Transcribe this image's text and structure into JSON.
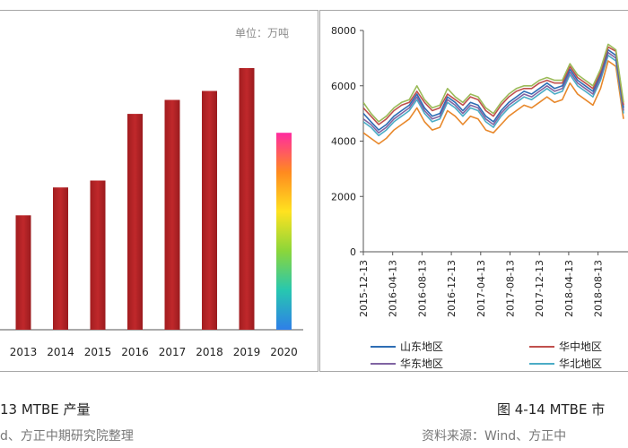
{
  "left_chart": {
    "unit_label": "单位：万吨",
    "caption": "13 MTBE 产量",
    "source": "d、方正中期研究院整理"
  },
  "right_chart": {
    "caption": "图 4-14 MTBE 市",
    "source": "资料来源：Wind、方正中"
  },
  "chart_data": [
    {
      "type": "bar",
      "categories": [
        "2013",
        "2014",
        "2015",
        "2016",
        "2017",
        "2018",
        "2019",
        "2020"
      ],
      "values": [
        1150,
        1430,
        1500,
        2170,
        2310,
        2400,
        2630,
        1980
      ],
      "ylim": [
        0,
        2630
      ],
      "colors": {
        "bar": "#c0282b",
        "highlight_gradient": [
          "#2e7fe8",
          "#27c7b0",
          "#8bd63a",
          "#ffe21f",
          "#ff8a1f",
          "#ff2ba0"
        ]
      }
    },
    {
      "type": "line",
      "x_ticks": [
        "2015-12-13",
        "2016-04-13",
        "2016-08-13",
        "2016-12-13",
        "2017-04-13",
        "2017-08-13",
        "2017-12-13",
        "2018-04-13",
        "2018-08-13"
      ],
      "y_ticks": [
        0,
        2000,
        4000,
        6000,
        8000
      ],
      "ylim": [
        0,
        8000
      ],
      "legend_position": "bottom",
      "series": [
        {
          "name": "山东地区",
          "color": "#2e6db4",
          "values": [
            5000,
            4700,
            4400,
            4600,
            4900,
            5100,
            5300,
            5700,
            5200,
            4900,
            5000,
            5600,
            5400,
            5100,
            5400,
            5300,
            4900,
            4700,
            5100,
            5400,
            5600,
            5800,
            5700,
            5900,
            6100,
            5900,
            6000,
            6600,
            6200,
            6000,
            5800,
            6400,
            7300,
            7100,
            5200
          ]
        },
        {
          "name": "华中地区",
          "color": "#c0504d",
          "values": [
            5200,
            4900,
            4600,
            4800,
            5100,
            5300,
            5400,
            5800,
            5400,
            5100,
            5200,
            5700,
            5500,
            5300,
            5600,
            5500,
            5100,
            4900,
            5300,
            5600,
            5800,
            5900,
            5900,
            6100,
            6200,
            6100,
            6100,
            6700,
            6300,
            6100,
            5900,
            6500,
            7400,
            7250,
            5300
          ]
        },
        {
          "name": "华东地区",
          "color": "#8064a2",
          "values": [
            4800,
            4600,
            4300,
            4500,
            4800,
            5000,
            5200,
            5600,
            5100,
            4800,
            4900,
            5500,
            5300,
            5000,
            5300,
            5200,
            4800,
            4600,
            5000,
            5300,
            5500,
            5700,
            5600,
            5800,
            6000,
            5800,
            5900,
            6500,
            6100,
            5900,
            5700,
            6300,
            7200,
            7000,
            5100
          ]
        },
        {
          "name": "华北地区",
          "color": "#4bacc6",
          "values": [
            4700,
            4500,
            4200,
            4400,
            4700,
            4900,
            5100,
            5500,
            5000,
            4700,
            4800,
            5400,
            5200,
            4900,
            5200,
            5100,
            4700,
            4500,
            4900,
            5200,
            5400,
            5600,
            5500,
            5700,
            5900,
            5700,
            5800,
            6400,
            6000,
            5800,
            5600,
            6200,
            7100,
            6900,
            5000
          ]
        },
        {
          "name": "",
          "color": "#e8882b",
          "values": [
            4300,
            4100,
            3900,
            4100,
            4400,
            4600,
            4800,
            5200,
            4700,
            4400,
            4500,
            5100,
            4900,
            4600,
            4900,
            4800,
            4400,
            4300,
            4600,
            4900,
            5100,
            5300,
            5200,
            5400,
            5600,
            5400,
            5500,
            6100,
            5700,
            5500,
            5300,
            5900,
            6900,
            6700,
            4800
          ]
        },
        {
          "name": "",
          "color": "#9bbb59",
          "values": [
            5400,
            5000,
            4700,
            4900,
            5200,
            5400,
            5500,
            6000,
            5500,
            5200,
            5300,
            5900,
            5600,
            5400,
            5700,
            5600,
            5200,
            5000,
            5400,
            5700,
            5900,
            6000,
            6000,
            6200,
            6300,
            6200,
            6200,
            6800,
            6400,
            6200,
            6000,
            6600,
            7500,
            7300,
            5400
          ]
        }
      ]
    }
  ]
}
